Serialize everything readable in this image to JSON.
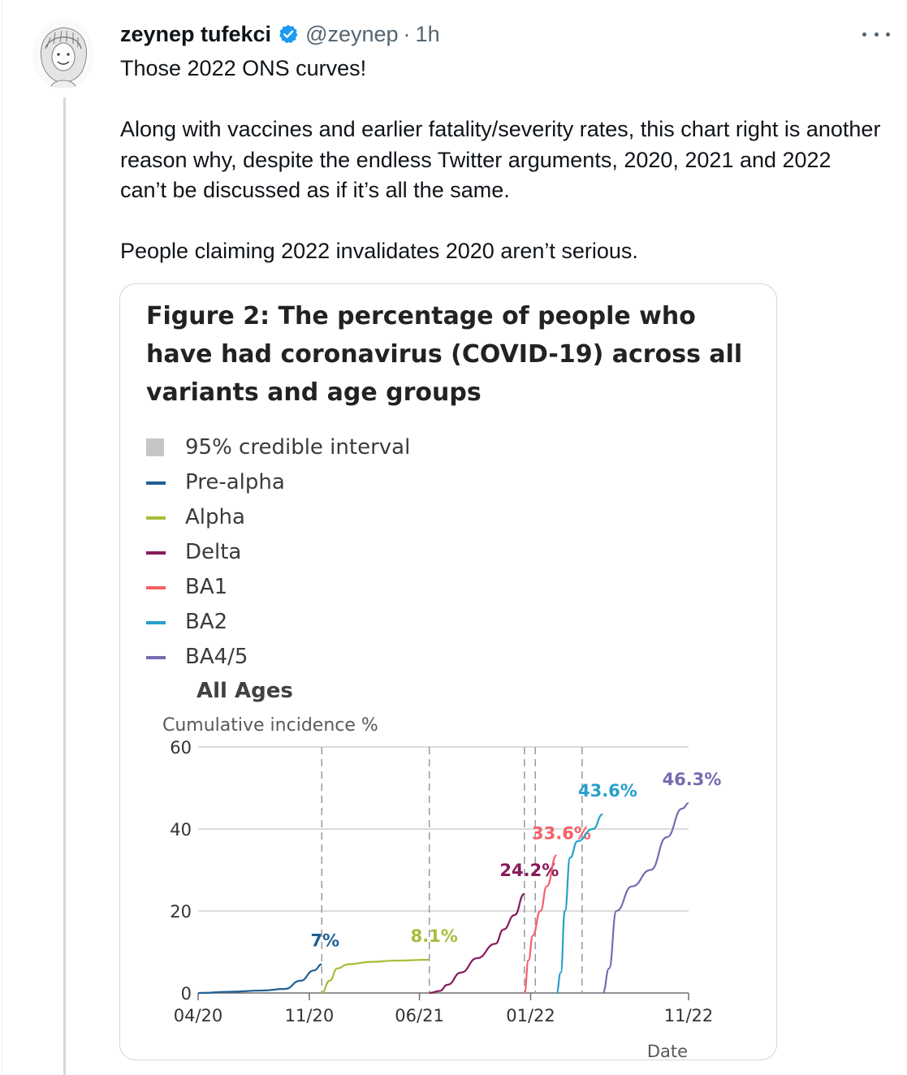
{
  "tweet": {
    "display_name": "zeynep tufekci",
    "handle": "@zeynep",
    "separator": "·",
    "time": "1h",
    "paragraphs": [
      "Those 2022 ONS curves!",
      "Along with vaccines and earlier fatality/severity rates, this chart right is another reason why, despite the endless Twitter arguments, 2020, 2021 and 2022 can’t be discussed as if it’s all the same.",
      "People claiming 2022 invalidates 2020 aren’t serious."
    ],
    "icons": {
      "avatar": "avatar-illustration",
      "verified": "verified-badge-icon",
      "more": "more-options-icon"
    },
    "colors": {
      "verified": "#1d9bf0",
      "secondary_text": "#536471",
      "thread_line": "#cfd9de"
    }
  },
  "figure": {
    "title": "Figure 2: The percentage of people who have had coronavirus (COVID-19) across all variants and age groups",
    "panel_title": "All Ages",
    "legend": [
      {
        "label": "95% credible interval",
        "color": "#c6c6c6",
        "shape": "square"
      },
      {
        "label": "Pre-alpha",
        "color": "#206095",
        "shape": "line"
      },
      {
        "label": "Alpha",
        "color": "#a8bd3a",
        "shape": "line"
      },
      {
        "label": "Delta",
        "color": "#871a5b",
        "shape": "line"
      },
      {
        "label": "BA1",
        "color": "#f66068",
        "shape": "line"
      },
      {
        "label": "BA2",
        "color": "#27a0cc",
        "shape": "line"
      },
      {
        "label": "BA4/5",
        "color": "#746cb1",
        "shape": "line"
      }
    ]
  },
  "chart_data": {
    "type": "line",
    "ylabel": "Cumulative incidence %",
    "xlabel": "Date",
    "x_ticks": [
      "04/20",
      "11/20",
      "06/21",
      "01/22",
      "11/22"
    ],
    "x_tick_dates": [
      "2020-04",
      "2020-11",
      "2021-06",
      "2022-01",
      "2022-11"
    ],
    "ylim": [
      0,
      60
    ],
    "y_ticks": [
      0,
      20,
      40,
      60
    ],
    "xlim": [
      "2020-04",
      "2022-11"
    ],
    "grid": "horizontal",
    "legend_position": "top",
    "dividers": [
      "2020-11-25",
      "2021-06-20",
      "2021-12-20",
      "2022-01-10",
      "2022-04-10"
    ],
    "series": [
      {
        "name": "Pre-alpha",
        "color": "#206095",
        "end_label": "7%",
        "points": [
          [
            "2020-04-01",
            0
          ],
          [
            "2020-06-01",
            0.3
          ],
          [
            "2020-08-01",
            0.6
          ],
          [
            "2020-09-15",
            1
          ],
          [
            "2020-10-15",
            3
          ],
          [
            "2020-11-10",
            5.5
          ],
          [
            "2020-11-25",
            7
          ]
        ]
      },
      {
        "name": "Alpha",
        "color": "#a8bd3a",
        "end_label": "8.1%",
        "points": [
          [
            "2020-11-25",
            0
          ],
          [
            "2020-12-10",
            3
          ],
          [
            "2020-12-25",
            6
          ],
          [
            "2021-01-15",
            7
          ],
          [
            "2021-03-01",
            7.6
          ],
          [
            "2021-04-15",
            7.9
          ],
          [
            "2021-06-20",
            8.1
          ]
        ]
      },
      {
        "name": "Delta",
        "color": "#871a5b",
        "end_label": "24.2%",
        "points": [
          [
            "2021-06-20",
            0
          ],
          [
            "2021-07-10",
            0.5
          ],
          [
            "2021-07-25",
            2
          ],
          [
            "2021-08-20",
            5
          ],
          [
            "2021-09-20",
            8.5
          ],
          [
            "2021-10-25",
            12
          ],
          [
            "2021-11-10",
            15.5
          ],
          [
            "2021-12-01",
            19
          ],
          [
            "2021-12-20",
            24.2
          ]
        ]
      },
      {
        "name": "BA1",
        "color": "#f66068",
        "end_label": "33.6%",
        "points": [
          [
            "2021-12-20",
            0
          ],
          [
            "2021-12-28",
            8
          ],
          [
            "2022-01-05",
            14
          ],
          [
            "2022-01-20",
            20
          ],
          [
            "2022-02-01",
            26
          ],
          [
            "2022-02-20",
            33.6
          ]
        ]
      },
      {
        "name": "BA2",
        "color": "#27a0cc",
        "end_label": "43.6%",
        "points": [
          [
            "2022-02-20",
            0
          ],
          [
            "2022-02-28",
            5
          ],
          [
            "2022-03-08",
            20
          ],
          [
            "2022-03-18",
            33
          ],
          [
            "2022-04-01",
            37
          ],
          [
            "2022-05-01",
            40
          ],
          [
            "2022-05-20",
            43.6
          ]
        ]
      },
      {
        "name": "BA4/5",
        "color": "#746cb1",
        "end_label": "46.3%",
        "points": [
          [
            "2022-05-20",
            0
          ],
          [
            "2022-06-01",
            6
          ],
          [
            "2022-06-15",
            20
          ],
          [
            "2022-07-15",
            26
          ],
          [
            "2022-08-20",
            30
          ],
          [
            "2022-09-20",
            38
          ],
          [
            "2022-10-20",
            45
          ],
          [
            "2022-11-01",
            46.3
          ]
        ]
      }
    ]
  }
}
